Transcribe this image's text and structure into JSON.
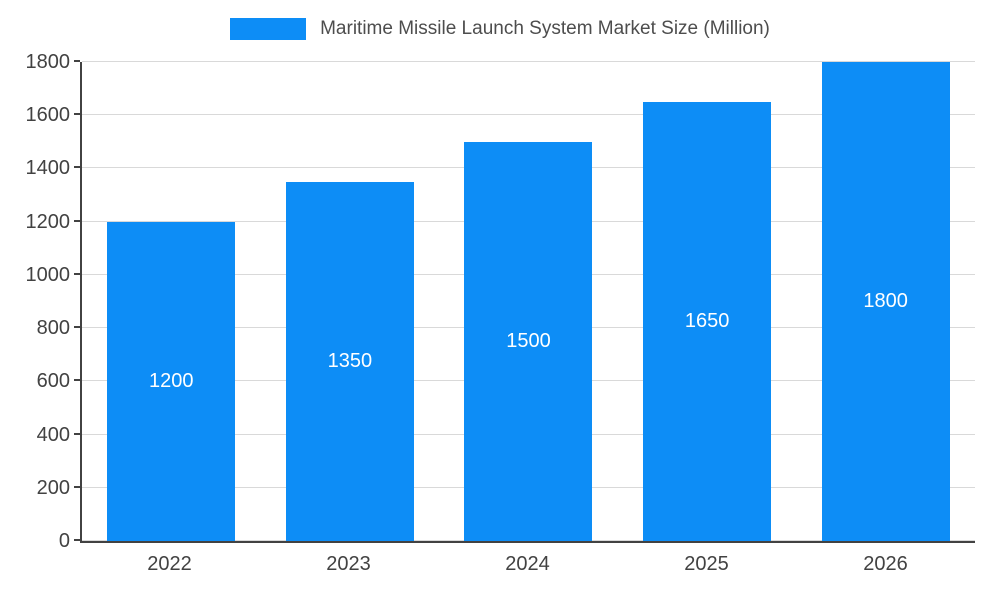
{
  "chart_data": {
    "type": "bar",
    "title": "Maritime Missile Launch System Market Size (Million)",
    "categories": [
      "2022",
      "2023",
      "2024",
      "2025",
      "2026"
    ],
    "values": [
      1200,
      1350,
      1500,
      1650,
      1800
    ],
    "xlabel": "",
    "ylabel": "",
    "ylim": [
      0,
      1800
    ],
    "yticks": [
      0,
      200,
      400,
      600,
      800,
      1000,
      1200,
      1400,
      1600,
      1800
    ],
    "bar_color": "#0d8df6",
    "value_label_color": "#ffffff",
    "grid": true,
    "legend_position": "top"
  }
}
